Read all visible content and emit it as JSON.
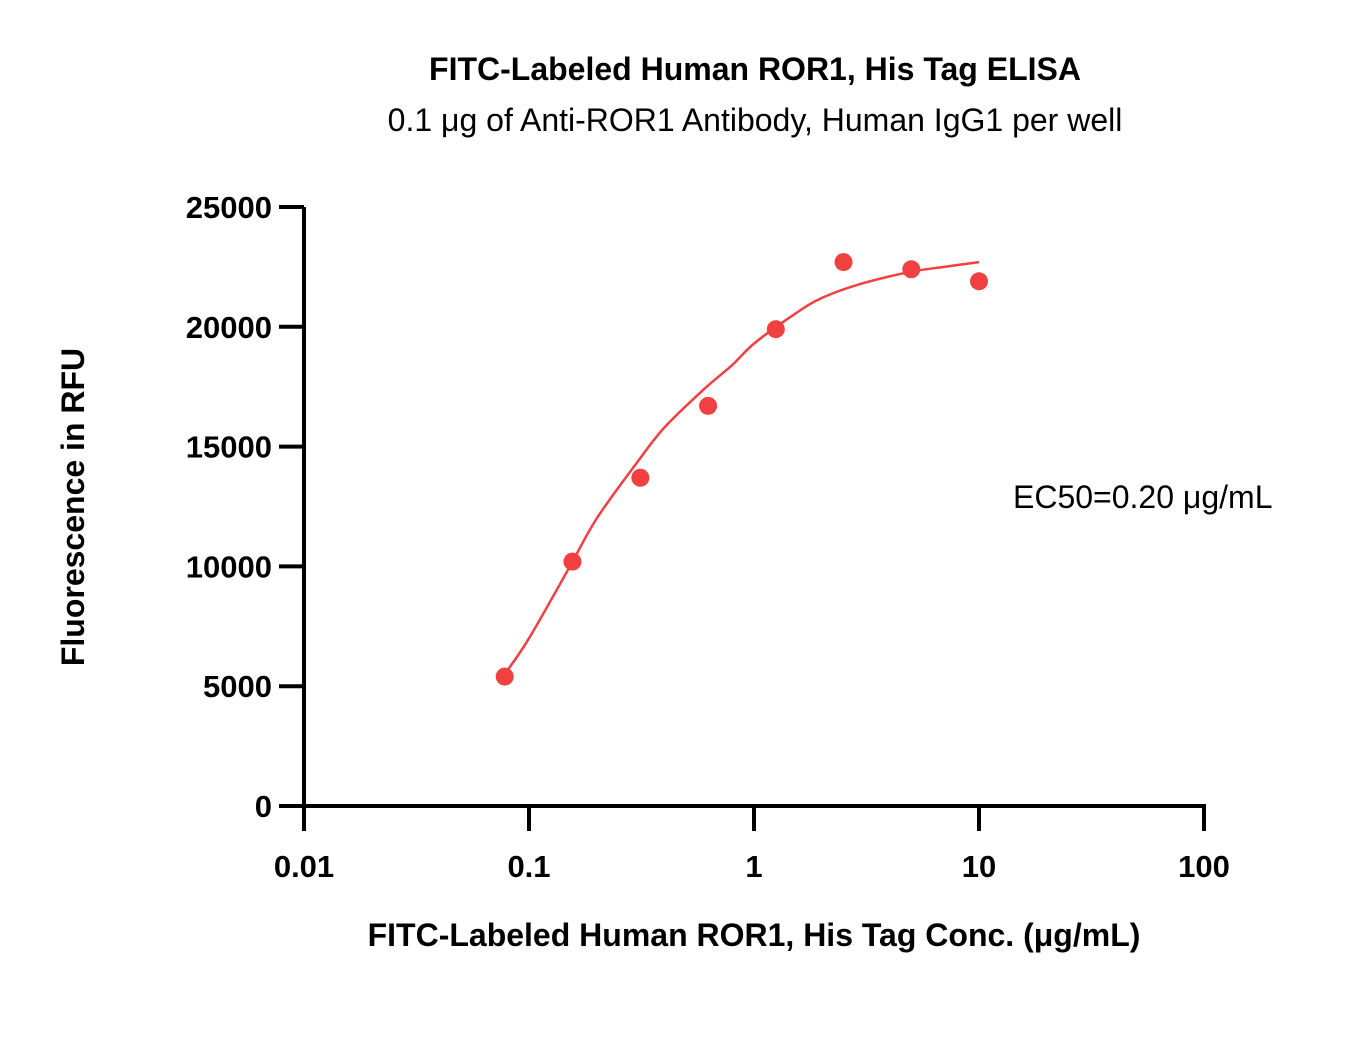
{
  "chart_data": {
    "type": "scatter",
    "title": "FITC-Labeled Human ROR1, His Tag ELISA",
    "subtitle": "0.1 μg of Anti-ROR1 Antibody, Human IgG1 per well",
    "xlabel": "FITC-Labeled Human ROR1, His Tag Conc. (μg/mL)",
    "ylabel": "Fluorescence in RFU",
    "x_scale": "log",
    "xlim": [
      0.01,
      100
    ],
    "ylim": [
      0,
      25000
    ],
    "x_ticks": [
      "0.01",
      "0.1",
      "1",
      "10",
      "100"
    ],
    "y_ticks": [
      "0",
      "5000",
      "10000",
      "15000",
      "20000",
      "25000"
    ],
    "grid": false,
    "color": "#f04040",
    "series": [
      {
        "x": [
          0.078,
          0.156,
          0.3125,
          0.625,
          1.25,
          2.5,
          5,
          10
        ],
        "y": [
          5400,
          10200,
          13700,
          16700,
          19900,
          22700,
          22400,
          21900
        ]
      }
    ],
    "fit_curve": {
      "x": [
        0.078,
        0.1,
        0.15,
        0.2,
        0.3,
        0.4,
        0.6,
        0.8,
        1,
        1.5,
        2,
        3,
        5,
        7,
        10
      ],
      "y": [
        5500,
        7000,
        9900,
        12000,
        14300,
        15800,
        17400,
        18400,
        19300,
        20500,
        21200,
        21800,
        22300,
        22500,
        22700
      ]
    },
    "annotations": [
      "EC50=0.20  μg/mL"
    ]
  }
}
